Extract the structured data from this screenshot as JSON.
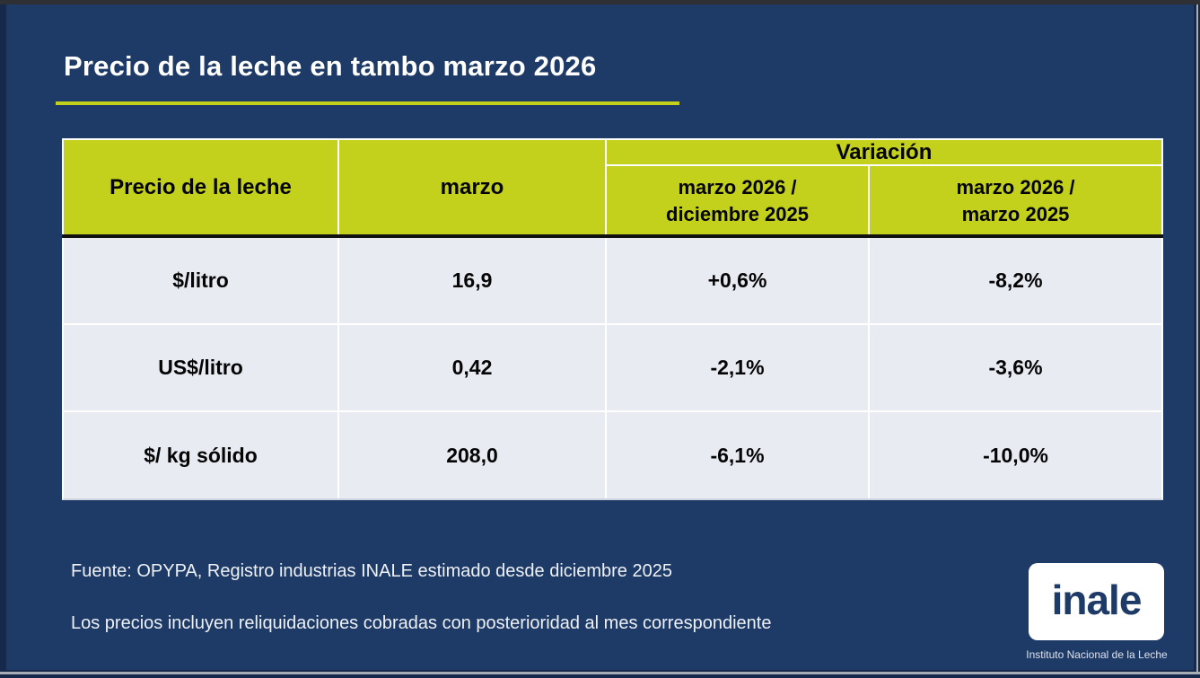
{
  "title": "Precio de la leche en tambo marzo 2026",
  "table": {
    "header": {
      "col_price": "Precio de la leche",
      "col_month": "marzo",
      "variation_group": "Variación",
      "variation_col_dec": "marzo 2026 /\ndiciembre 2025",
      "variation_col_year": "marzo 2026 /\nmarzo 2025"
    },
    "rows": [
      {
        "unit": "$/litro",
        "value": "16,9",
        "var_dec": "+0,6%",
        "var_year": "-8,2%"
      },
      {
        "unit": "US$/litro",
        "value": "0,42",
        "var_dec": "-2,1%",
        "var_year": "-3,6%"
      },
      {
        "unit": "$/ kg sólido",
        "value": "208,0",
        "var_dec": "-6,1%",
        "var_year": "-10,0%"
      }
    ]
  },
  "footnotes": {
    "source": "Fuente: OPYPA, Registro industrias INALE estimado desde diciembre 2025",
    "note": "Los precios incluyen reliquidaciones cobradas con posterioridad al mes correspondiente"
  },
  "logo": {
    "wordmark": "inale",
    "caption": "Instituto Nacional de la Leche"
  },
  "colors": {
    "slide_background": "#1e3a66",
    "frame_border": "#16294b",
    "accent_green": "#c4d11c",
    "row_background": "#e9ebf3",
    "table_text": "#000000",
    "title_text": "#ffffff"
  },
  "chart_data": {
    "type": "table",
    "title": "Precio de la leche en tambo marzo 2026",
    "columns": [
      "Precio de la leche",
      "marzo",
      "Variación: marzo 2026 / diciembre 2025",
      "Variación: marzo 2026 / marzo 2025"
    ],
    "rows": [
      [
        "$/litro",
        "16,9",
        "+0,6%",
        "-8,2%"
      ],
      [
        "US$/litro",
        "0,42",
        "-2,1%",
        "-3,6%"
      ],
      [
        "$/ kg sólido",
        "208,0",
        "-6,1%",
        "-10,0%"
      ]
    ]
  }
}
